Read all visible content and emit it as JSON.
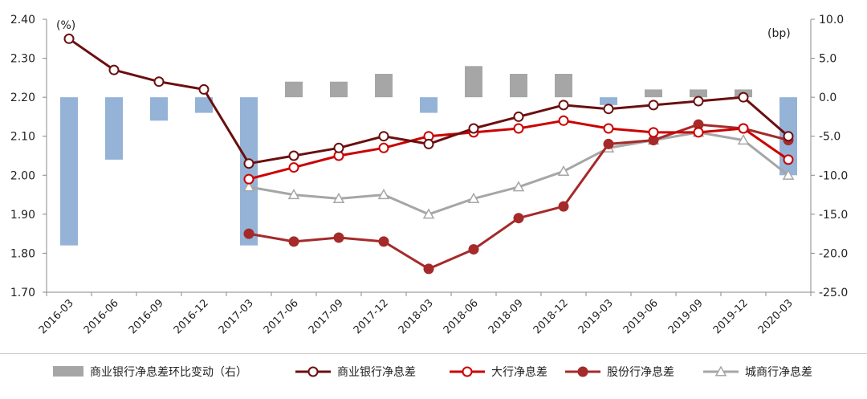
{
  "chart_data": {
    "type": "bar+line",
    "categories": [
      "2016-03",
      "2016-06",
      "2016-09",
      "2016-12",
      "2017-03",
      "2017-06",
      "2017-09",
      "2017-12",
      "2018-03",
      "2018-06",
      "2018-09",
      "2018-12",
      "2019-03",
      "2019-06",
      "2019-09",
      "2019-12",
      "2020-03"
    ],
    "left_axis": {
      "unit": "(%)",
      "ylim": [
        1.7,
        2.4
      ],
      "ticks": [
        "2.40",
        "2.30",
        "2.20",
        "2.10",
        "2.00",
        "1.90",
        "1.80",
        "1.70"
      ]
    },
    "right_axis": {
      "unit": "(bp)",
      "ylim": [
        -25.0,
        10.0
      ],
      "ticks": [
        "10.0",
        "5.0",
        "0.0",
        "-5.0",
        "-10.0",
        "-15.0",
        "-20.0",
        "-25.0"
      ]
    },
    "bar_series": {
      "name": "商业银行净息差环比变动（右）",
      "axis": "right",
      "values": [
        -19,
        -8,
        -3,
        -2,
        -19,
        2,
        2,
        3,
        -2,
        4,
        3,
        3,
        -1,
        1,
        1,
        1,
        -10
      ],
      "color_positive": "#a6a6a6",
      "color_negative": "#95b3d7"
    },
    "series": [
      {
        "name": "商业银行净息差",
        "axis": "left",
        "color": "#6b0f0f",
        "marker": "circle-open",
        "values": [
          2.35,
          2.27,
          2.24,
          2.22,
          2.03,
          2.05,
          2.07,
          2.1,
          2.08,
          2.12,
          2.15,
          2.18,
          2.17,
          2.18,
          2.19,
          2.2,
          2.1
        ]
      },
      {
        "name": "大行净息差",
        "axis": "left",
        "color": "#cc0000",
        "marker": "circle-open",
        "values": [
          null,
          null,
          null,
          null,
          1.99,
          2.02,
          2.05,
          2.07,
          2.1,
          2.11,
          2.12,
          2.14,
          2.12,
          2.11,
          2.11,
          2.12,
          2.04
        ]
      },
      {
        "name": "股份行净息差",
        "axis": "left",
        "color": "#a52a2a",
        "marker": "circle-filled",
        "values": [
          null,
          null,
          null,
          null,
          1.85,
          1.83,
          1.84,
          1.83,
          1.76,
          1.81,
          1.89,
          1.92,
          2.08,
          2.09,
          2.13,
          2.12,
          2.09
        ]
      },
      {
        "name": "城商行净息差",
        "axis": "left",
        "color": "#a6a6a6",
        "marker": "triangle-open",
        "values": [
          null,
          null,
          null,
          null,
          1.97,
          1.95,
          1.94,
          1.95,
          1.9,
          1.94,
          1.97,
          2.01,
          2.07,
          2.09,
          2.11,
          2.09,
          2.0
        ]
      }
    ],
    "legend_position": "bottom",
    "grid": false
  }
}
